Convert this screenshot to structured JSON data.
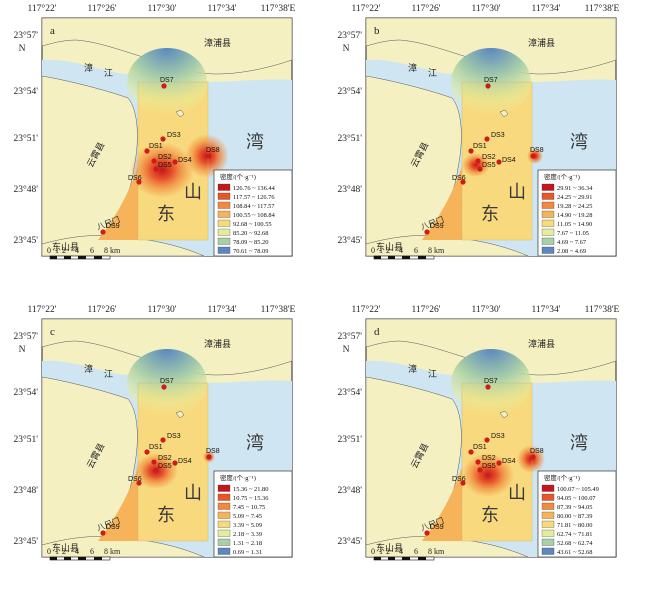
{
  "x_ticks": [
    "117°22'",
    "117°26'",
    "117°30'",
    "117°34'",
    "117°38'E"
  ],
  "y_ticks": [
    "23°57'",
    "23°54'",
    "23°51'",
    "23°48'",
    "23°45'"
  ],
  "north": "N",
  "places": {
    "zhangpu": "漳浦县",
    "yunxiao": "云霄县",
    "dongshan": "东山县",
    "jiang_1": "漳",
    "jiang_2": "江",
    "bay_1": "东",
    "bay_2": "山",
    "bay_3": "湾",
    "bridge": "八尺门"
  },
  "stations": [
    "DS1",
    "DS2",
    "DS3",
    "DS4",
    "DS5",
    "DS6",
    "DS7",
    "DS8",
    "DS9"
  ],
  "scale": {
    "ticks": [
      "0",
      "1",
      "2",
      "4",
      "6",
      "8 km"
    ]
  },
  "panels": [
    {
      "letter": "a",
      "legend_title": "密度/(个·g⁻¹)",
      "legend": [
        {
          "label": "126.76 ~ 136.44",
          "color": "#c4161c"
        },
        {
          "label": "117.57 ~ 126.76",
          "color": "#e8562c"
        },
        {
          "label": "108.84 ~ 117.57",
          "color": "#f08a3c"
        },
        {
          "label": "100.55 ~ 108.84",
          "color": "#f6b35a"
        },
        {
          "label": "92.68 ~ 100.55",
          "color": "#f9d97e"
        },
        {
          "label": "85.20 ~ 92.68",
          "color": "#e4ed9a"
        },
        {
          "label": "78.09 ~ 85.20",
          "color": "#a9cfa9"
        },
        {
          "label": "70.61 ~ 78.09",
          "color": "#5a88bf"
        }
      ]
    },
    {
      "letter": "b",
      "legend_title": "密度/(个·g⁻¹)",
      "legend": [
        {
          "label": "29.91 ~ 36.34",
          "color": "#c4161c"
        },
        {
          "label": "24.25 ~ 29.91",
          "color": "#e8562c"
        },
        {
          "label": "19.28 ~ 24.25",
          "color": "#f08a3c"
        },
        {
          "label": "14.90 ~ 19.28",
          "color": "#f6b35a"
        },
        {
          "label": "11.05 ~ 14.90",
          "color": "#f9d97e"
        },
        {
          "label": "7.67 ~ 11.05",
          "color": "#e4ed9a"
        },
        {
          "label": "4.69 ~ 7.67",
          "color": "#a9cfa9"
        },
        {
          "label": "2.08 ~ 4.69",
          "color": "#5a88bf"
        }
      ]
    },
    {
      "letter": "c",
      "legend_title": "密度/(个·g⁻¹)",
      "legend": [
        {
          "label": "15.36 ~ 21.80",
          "color": "#c4161c"
        },
        {
          "label": "10.75 ~ 15.36",
          "color": "#e8562c"
        },
        {
          "label": "7.45 ~ 10.75",
          "color": "#f08a3c"
        },
        {
          "label": "5.09 ~ 7.45",
          "color": "#f6b35a"
        },
        {
          "label": "3.39 ~ 5.09",
          "color": "#f9d97e"
        },
        {
          "label": "2.18 ~ 3.39",
          "color": "#e4ed9a"
        },
        {
          "label": "1.31 ~ 2.18",
          "color": "#a9cfa9"
        },
        {
          "label": "0.69 ~ 1.31",
          "color": "#5a88bf"
        }
      ]
    },
    {
      "letter": "d",
      "legend_title": "密度/(个·g⁻¹)",
      "legend": [
        {
          "label": "100.07 ~ 105.49",
          "color": "#c4161c"
        },
        {
          "label": "94.05 ~ 100.07",
          "color": "#e8562c"
        },
        {
          "label": "87.39 ~ 94.05",
          "color": "#f08a3c"
        },
        {
          "label": "80.00 ~ 87.39",
          "color": "#f6b35a"
        },
        {
          "label": "71.81 ~ 80.00",
          "color": "#f9d97e"
        },
        {
          "label": "62.74 ~ 71.81",
          "color": "#e4ed9a"
        },
        {
          "label": "52.68 ~ 62.74",
          "color": "#a9cfa9"
        },
        {
          "label": "43.61 ~ 52.68",
          "color": "#5a88bf"
        }
      ]
    }
  ]
}
